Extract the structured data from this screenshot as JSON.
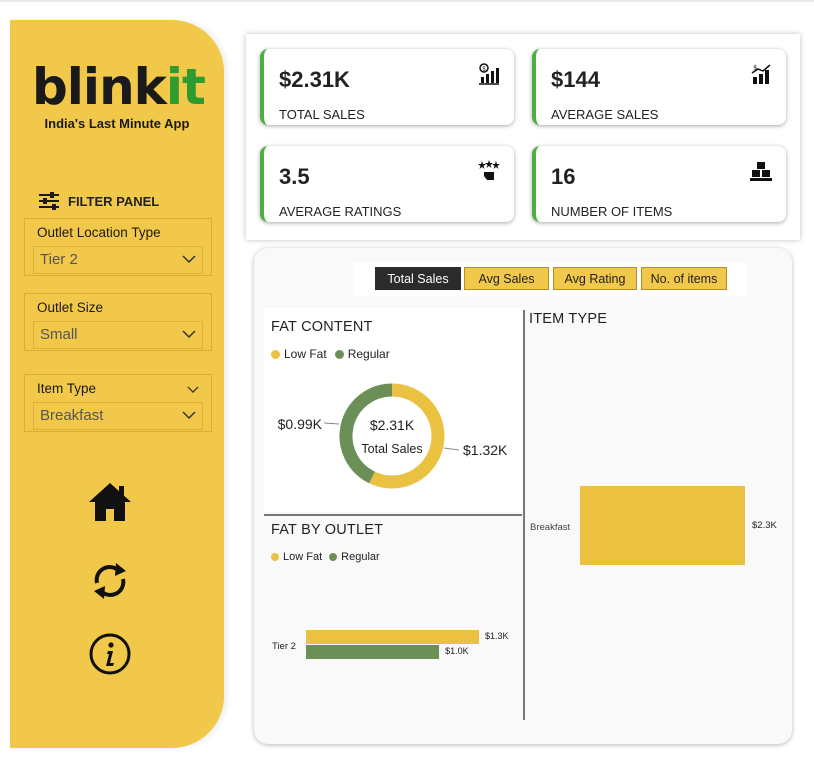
{
  "brand": {
    "logo_main": "blink",
    "logo_accent": "it",
    "tagline": "India's Last Minute App"
  },
  "filter_panel": {
    "title": "FILTER PANEL",
    "filters": [
      {
        "label": "Outlet Location Type",
        "value": "Tier 2"
      },
      {
        "label": "Outlet Size",
        "value": "Small"
      },
      {
        "label": "Item Type",
        "value": "Breakfast"
      }
    ]
  },
  "nav": [
    {
      "icon": "home-icon"
    },
    {
      "icon": "refresh-icon"
    },
    {
      "icon": "info-icon"
    }
  ],
  "kpis": [
    {
      "value": "$2.31K",
      "label": "TOTAL SALES",
      "icon": "sales-chart-icon"
    },
    {
      "value": "$144",
      "label": "AVERAGE SALES",
      "icon": "growth-icon"
    },
    {
      "value": "3.5",
      "label": "AVERAGE RATINGS",
      "icon": "rating-icon"
    },
    {
      "value": "16",
      "label": "NUMBER OF ITEMS",
      "icon": "boxes-icon"
    }
  ],
  "tabs": [
    "Total Sales",
    "Avg Sales",
    "Avg Rating",
    "No. of items"
  ],
  "active_tab": "Total Sales",
  "colors": {
    "accent": "#f2c84b",
    "low_fat": "#ebc142",
    "regular": "#6b8f56",
    "green": "#2e9b2e"
  },
  "chart_data": [
    {
      "type": "pie",
      "title": "FAT CONTENT",
      "legend": [
        "Low Fat",
        "Regular"
      ],
      "center_value": "$2.31K",
      "center_label": "Total Sales",
      "values": [
        1.32,
        0.99
      ],
      "data_labels": [
        "$1.32K",
        "$0.99K"
      ]
    },
    {
      "type": "bar",
      "title": "FAT BY OUTLET",
      "legend": [
        "Low Fat",
        "Regular"
      ],
      "categories": [
        "Tier 2"
      ],
      "series": [
        {
          "name": "Low Fat",
          "values": [
            1.3
          ],
          "labels": [
            "$1.3K"
          ]
        },
        {
          "name": "Regular",
          "values": [
            1.0
          ],
          "labels": [
            "$1.0K"
          ]
        }
      ]
    },
    {
      "type": "bar",
      "title": "ITEM TYPE",
      "categories": [
        "Breakfast"
      ],
      "values": [
        2.3
      ],
      "labels": [
        "$2.3K"
      ]
    }
  ]
}
